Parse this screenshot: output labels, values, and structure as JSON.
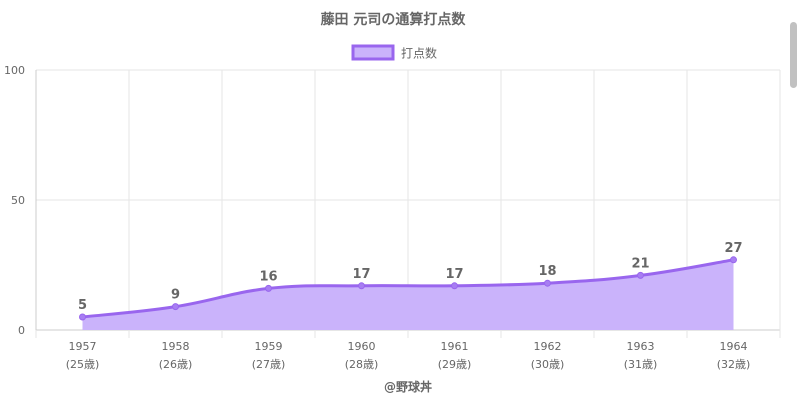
{
  "chart_data": {
    "type": "area",
    "title": "藤田 元司の通算打点数",
    "legend": {
      "label": "打点数",
      "position": "top"
    },
    "categories": [
      "1957",
      "1958",
      "1959",
      "1960",
      "1961",
      "1962",
      "1963",
      "1964"
    ],
    "sublabels": [
      "(25歳)",
      "(26歳)",
      "(27歳)",
      "(28歳)",
      "(29歳)",
      "(30歳)",
      "(31歳)",
      "(32歳)"
    ],
    "series": [
      {
        "name": "打点数",
        "values": [
          5,
          9,
          16,
          17,
          17,
          18,
          21,
          27
        ]
      }
    ],
    "ylim": [
      0,
      100
    ],
    "yticks": [
      0,
      50,
      100
    ],
    "grid": true,
    "data_labels": true,
    "credit": "@野球丼",
    "colors": {
      "line": "#9966ee",
      "fill": "#cab3fb",
      "point": "#a77ef2",
      "text": "#666666",
      "grid": "#e6e6e6"
    }
  }
}
